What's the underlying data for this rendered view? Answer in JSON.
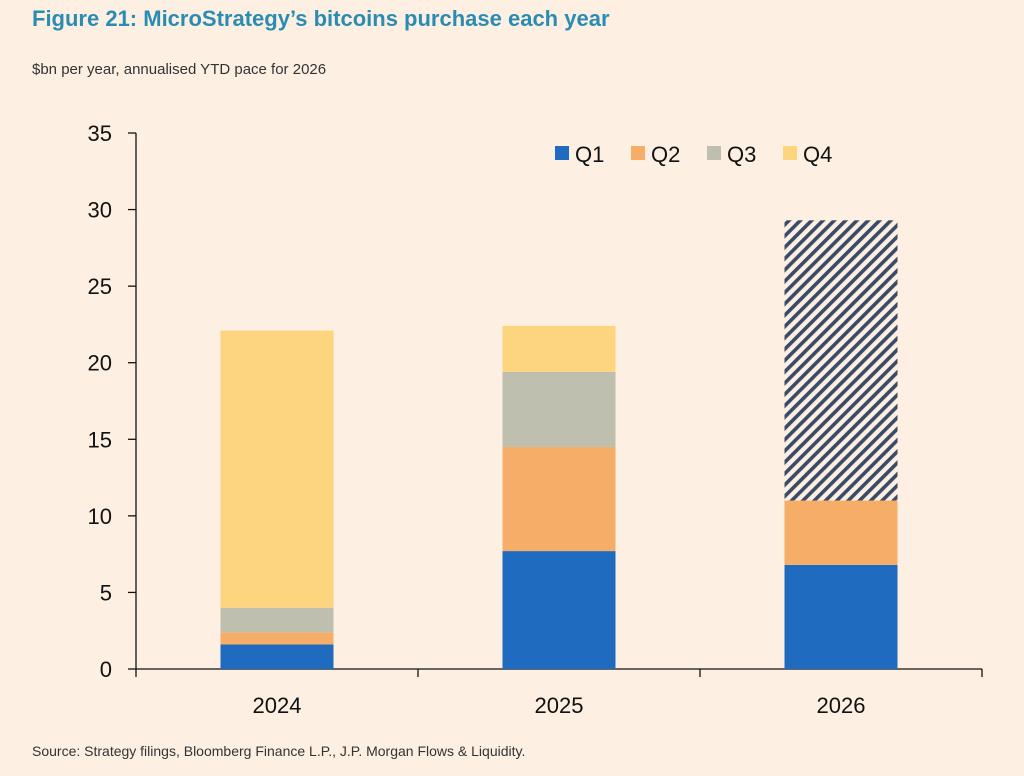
{
  "title": "Figure 21: MicroStrategy’s bitcoins purchase each year",
  "subtitle": "$bn per year, annualised YTD pace for 2026",
  "source": "Source: Strategy filings, Bloomberg Finance L.P., J.P. Morgan Flows & Liquidity.",
  "colors": {
    "background": "#fdf0e2",
    "title": "#2b8cb3",
    "Q1": "#1f6bbf",
    "Q2": "#f5ad68",
    "Q3": "#bfbfb0",
    "Q4": "#fdd57e",
    "projection_hatch": "#3b4a66"
  },
  "chart_data": {
    "type": "bar",
    "stacked": true,
    "categories": [
      "2024",
      "2025",
      "2026"
    ],
    "series": [
      {
        "name": "Q1",
        "values": [
          1.6,
          7.7,
          6.8
        ]
      },
      {
        "name": "Q2",
        "values": [
          0.8,
          6.8,
          4.2
        ]
      },
      {
        "name": "Q3",
        "values": [
          1.6,
          4.9,
          0
        ]
      },
      {
        "name": "Q4",
        "values": [
          18.1,
          3.0,
          0
        ]
      }
    ],
    "projection": {
      "category": "2026",
      "from": 11.0,
      "to": 29.3,
      "pattern": "hatched"
    },
    "title": "",
    "xlabel": "",
    "ylabel": "",
    "ylim": [
      0,
      35
    ],
    "yticks": [
      0,
      5,
      10,
      15,
      20,
      25,
      30,
      35
    ],
    "grid": false,
    "legend": {
      "position": "top-right",
      "entries": [
        "Q1",
        "Q2",
        "Q3",
        "Q4"
      ]
    }
  }
}
